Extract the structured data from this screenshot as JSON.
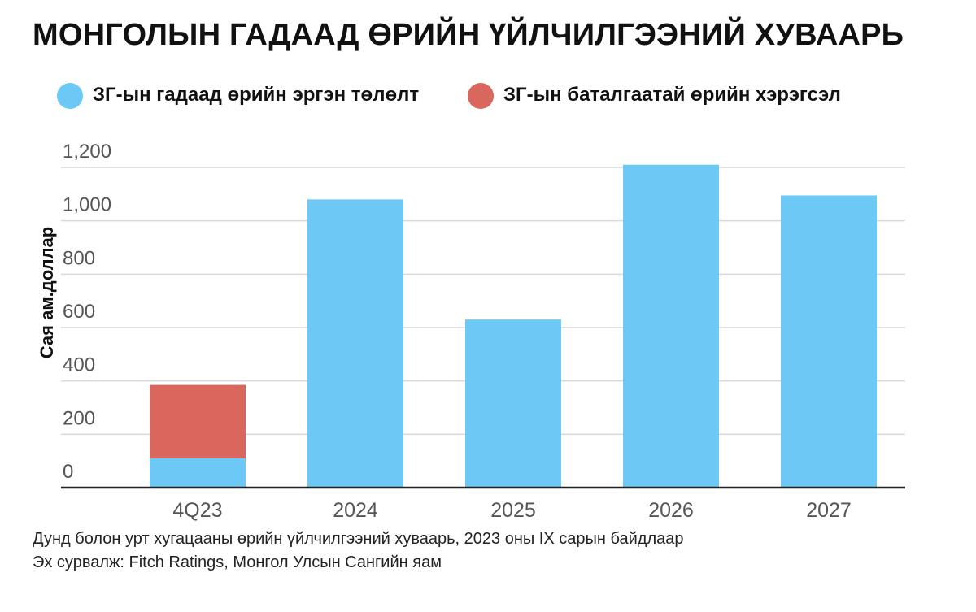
{
  "title": "МОНГОЛЫН ГАДААД ӨРИЙН ҮЙЛЧИЛГЭЭНИЙ ХУВААРЬ",
  "footnotes": {
    "note": "Дунд болон урт хугацааны өрийн үйлчилгээний хуваарь, 2023 оны IX сарын байдлаар",
    "source": "Эх сурвалж: Fitch Ratings, Монгол Улсын Сангийн яам"
  },
  "colors": {
    "series_1": "#6cc9f6",
    "series_2": "#d9675e",
    "grid": "#d9d9d9",
    "axis": "#222222"
  },
  "chart_data": {
    "type": "bar",
    "stacked": true,
    "categories": [
      "4Q23",
      "2024",
      "2025",
      "2026",
      "2027"
    ],
    "series": [
      {
        "name": "ЗГ-ын гадаад өрийн эргэн төлөлт",
        "values": [
          110,
          1080,
          630,
          1210,
          1095
        ]
      },
      {
        "name": "ЗГ-ын баталгаатай өрийн хэрэгсэл",
        "values": [
          275,
          0,
          0,
          0,
          0
        ]
      }
    ],
    "yticks": [
      "0",
      "200",
      "400",
      "600",
      "800",
      "1,000",
      "1,200"
    ],
    "ylabel": "Сая ам.доллар",
    "xlabel": "",
    "ylim": [
      0,
      1200
    ],
    "grid": true,
    "legend": "top-left"
  }
}
